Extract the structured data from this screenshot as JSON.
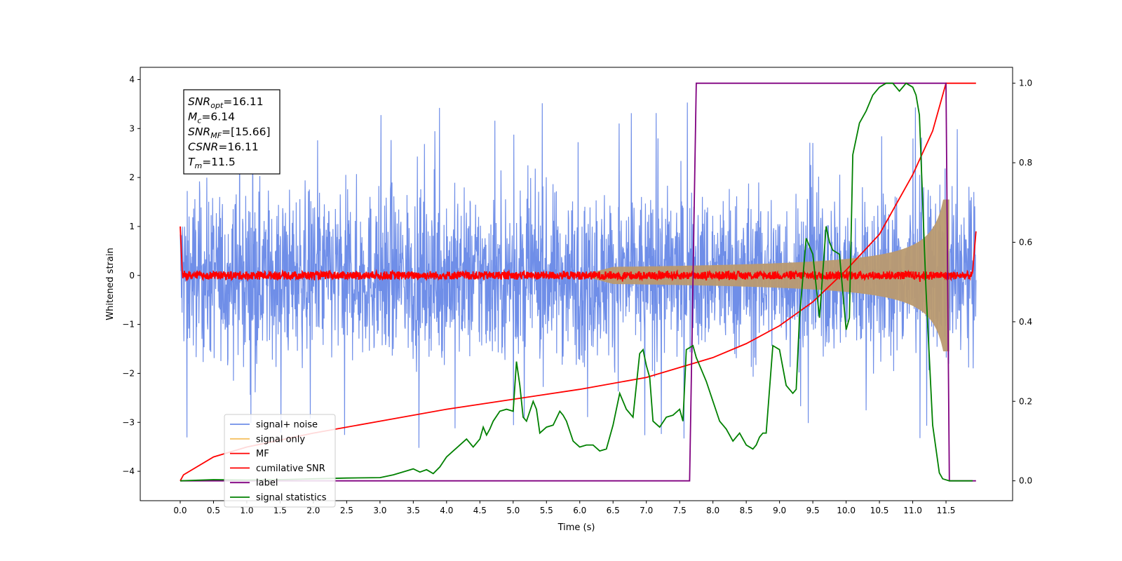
{
  "chart_data": {
    "type": "line",
    "xlabel": "Time (s)",
    "ylabel": "Whitened strain",
    "xlim": [
      -0.6,
      12.5
    ],
    "ylim": [
      -4.6,
      4.25
    ],
    "ylim_right": [
      -0.05,
      1.04
    ],
    "x_ticks": [
      "0.0",
      "0.5",
      "1.0",
      "1.5",
      "2.0",
      "2.5",
      "3.0",
      "3.5",
      "4.0",
      "4.5",
      "5.0",
      "5.5",
      "6.0",
      "6.5",
      "7.0",
      "7.5",
      "8.0",
      "8.5",
      "9.0",
      "9.5",
      "10.0",
      "10.5",
      "11.0",
      "11.5"
    ],
    "y_ticks": [
      "4",
      "3",
      "2",
      "1",
      "0",
      "−1",
      "−2",
      "−3",
      "−4"
    ],
    "y_ticks_right": [
      "1.0",
      "0.8",
      "0.6",
      "0.4",
      "0.2",
      "0.0"
    ],
    "grid": false,
    "legend_position": "lower-left",
    "annotation": {
      "lines": [
        {
          "sym": "SNR",
          "sub": "opt",
          "val": "=16.11"
        },
        {
          "sym": "M",
          "sub": "c",
          "val": "=6.14"
        },
        {
          "sym": "SNR",
          "sub": "MF",
          "val": "=[15.66]"
        },
        {
          "sym": "CSNR",
          "sub": "",
          "val": "=16.11"
        },
        {
          "sym": "T",
          "sub": "m",
          "val": "=11.5"
        }
      ]
    },
    "series": [
      {
        "name": "signal+ noise",
        "color": "#6f8ee8",
        "axis": "left",
        "description": "noisy whitened strain, amplitude ~±2.5 with spikes to ±3.9, t 0–11.95"
      },
      {
        "name": "signal only",
        "color": "#f5c060",
        "axis": "left",
        "description": "chirp envelope growing from ±0.05 to ±1.5 near t≈11.5"
      },
      {
        "name": "MF",
        "color": "#ff0000",
        "axis": "left",
        "description": "matched-filter output, noise ~±0.08 around 0, endpoints ~1.0"
      },
      {
        "name": "cumilative SNR",
        "color": "#ff0000",
        "axis": "right",
        "x": [
          0.0,
          0.05,
          0.5,
          1.0,
          2.0,
          3.0,
          4.0,
          5.0,
          6.0,
          7.0,
          8.0,
          8.5,
          9.0,
          9.5,
          10.0,
          10.5,
          11.0,
          11.3,
          11.5,
          11.95
        ],
        "y": [
          0.0,
          0.015,
          0.06,
          0.085,
          0.12,
          0.15,
          0.18,
          0.205,
          0.23,
          0.26,
          0.31,
          0.345,
          0.39,
          0.45,
          0.53,
          0.62,
          0.77,
          0.88,
          1.0,
          1.0
        ]
      },
      {
        "name": "label",
        "color": "#800080",
        "axis": "right",
        "x": [
          0.0,
          7.65,
          7.75,
          11.5,
          11.55,
          11.95
        ],
        "y": [
          0.0,
          0.0,
          1.0,
          1.0,
          0.0,
          0.0
        ]
      },
      {
        "name": "signal statistics",
        "color": "#008000",
        "axis": "right",
        "x": [
          0.0,
          0.5,
          1.0,
          1.5,
          2.0,
          2.5,
          3.0,
          3.2,
          3.4,
          3.5,
          3.6,
          3.7,
          3.8,
          3.9,
          4.0,
          4.1,
          4.2,
          4.3,
          4.4,
          4.5,
          4.55,
          4.6,
          4.65,
          4.7,
          4.8,
          4.9,
          5.0,
          5.05,
          5.1,
          5.15,
          5.2,
          5.3,
          5.35,
          5.4,
          5.5,
          5.6,
          5.7,
          5.75,
          5.8,
          5.9,
          6.0,
          6.1,
          6.2,
          6.3,
          6.4,
          6.5,
          6.6,
          6.7,
          6.8,
          6.9,
          6.95,
          7.0,
          7.05,
          7.1,
          7.2,
          7.3,
          7.4,
          7.5,
          7.55,
          7.6,
          7.7,
          7.75,
          7.8,
          7.9,
          8.0,
          8.1,
          8.2,
          8.3,
          8.4,
          8.5,
          8.6,
          8.65,
          8.7,
          8.75,
          8.8,
          8.9,
          9.0,
          9.1,
          9.2,
          9.25,
          9.3,
          9.4,
          9.5,
          9.6,
          9.7,
          9.75,
          9.8,
          9.9,
          10.0,
          10.05,
          10.1,
          10.2,
          10.3,
          10.4,
          10.5,
          10.6,
          10.7,
          10.8,
          10.9,
          11.0,
          11.05,
          11.1,
          11.2,
          11.3,
          11.4,
          11.45,
          11.55,
          11.7,
          11.9
        ],
        "y": [
          0.0,
          0.003,
          0.002,
          0.003,
          0.005,
          0.007,
          0.008,
          0.015,
          0.025,
          0.03,
          0.022,
          0.028,
          0.018,
          0.035,
          0.06,
          0.075,
          0.09,
          0.105,
          0.085,
          0.105,
          0.135,
          0.115,
          0.13,
          0.15,
          0.175,
          0.18,
          0.175,
          0.3,
          0.24,
          0.16,
          0.15,
          0.2,
          0.18,
          0.12,
          0.135,
          0.14,
          0.175,
          0.165,
          0.15,
          0.1,
          0.085,
          0.09,
          0.09,
          0.075,
          0.08,
          0.14,
          0.22,
          0.18,
          0.16,
          0.32,
          0.33,
          0.29,
          0.26,
          0.15,
          0.135,
          0.16,
          0.165,
          0.18,
          0.15,
          0.33,
          0.34,
          0.31,
          0.29,
          0.25,
          0.2,
          0.15,
          0.13,
          0.1,
          0.12,
          0.09,
          0.08,
          0.09,
          0.11,
          0.12,
          0.12,
          0.34,
          0.33,
          0.24,
          0.22,
          0.23,
          0.41,
          0.61,
          0.57,
          0.41,
          0.64,
          0.6,
          0.58,
          0.57,
          0.38,
          0.41,
          0.82,
          0.9,
          0.93,
          0.97,
          0.99,
          1.0,
          1.0,
          0.98,
          1.0,
          0.99,
          0.97,
          0.92,
          0.48,
          0.14,
          0.02,
          0.005,
          0.0,
          0.0,
          0.0
        ]
      }
    ]
  }
}
